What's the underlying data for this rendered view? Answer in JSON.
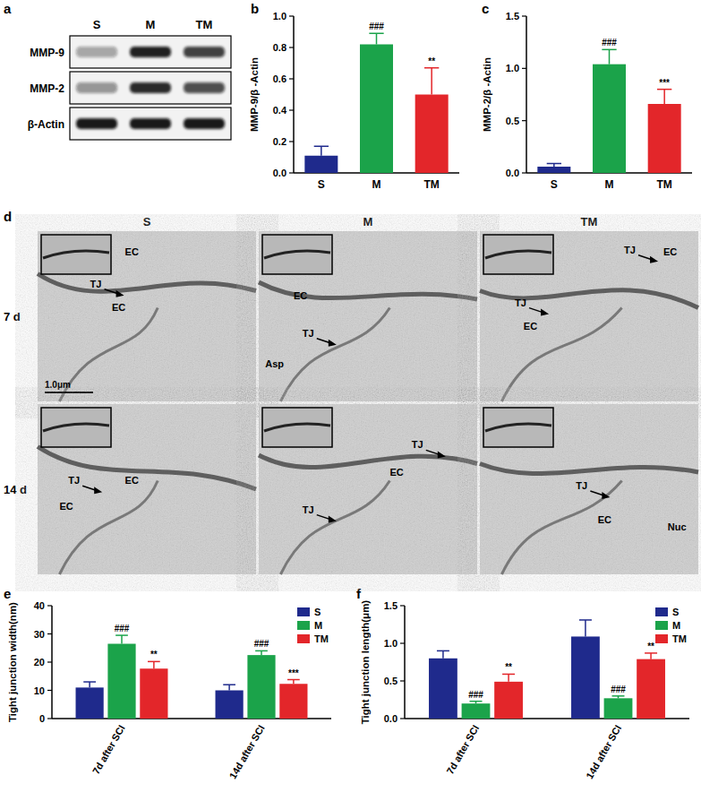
{
  "panel_labels": [
    "a",
    "b",
    "c",
    "d",
    "e",
    "f"
  ],
  "blot": {
    "lanes": [
      "S",
      "M",
      "TM"
    ],
    "rows": [
      "MMP-9",
      "MMP-2",
      "β-Actin"
    ]
  },
  "micrographs": {
    "columns": [
      "S",
      "M",
      "TM"
    ],
    "rows": [
      "7 d",
      "14 d"
    ],
    "scale_bar": "1.0μm",
    "labels": [
      [
        [
          "EC",
          "TJ",
          "EC"
        ],
        [
          "EC",
          "TJ",
          "Asp"
        ],
        [
          "TJ",
          "TJ",
          "EC",
          "EC"
        ]
      ],
      [
        [
          "TJ",
          "EC",
          "EC"
        ],
        [
          "TJ",
          "EC",
          "TJ"
        ],
        [
          "TJ",
          "EC",
          "Nuc"
        ]
      ]
    ]
  },
  "chart_data": [
    {
      "type": "bar",
      "y_label": "MMP-9/β -Actin",
      "categories": [
        "S",
        "M",
        "TM"
      ],
      "values": [
        0.11,
        0.82,
        0.5
      ],
      "errors": [
        0.06,
        0.07,
        0.17
      ],
      "colors": [
        "#1f2a8c",
        "#1ba34a",
        "#e3262a"
      ],
      "sig_labels": [
        null,
        "###",
        "**"
      ],
      "ylim": [
        0,
        1.0
      ],
      "yticks": [
        {
          "value": 0,
          "label": "0.0"
        },
        0.2,
        0.4,
        0.6,
        0.8,
        {
          "value": 1.0,
          "label": "1.0"
        }
      ]
    },
    {
      "type": "bar",
      "y_label": "MMP-2/β -Actin",
      "categories": [
        "S",
        "M",
        "TM"
      ],
      "values": [
        0.06,
        1.04,
        0.66
      ],
      "errors": [
        0.03,
        0.14,
        0.14
      ],
      "colors": [
        "#1f2a8c",
        "#1ba34a",
        "#e3262a"
      ],
      "sig_labels": [
        null,
        "###",
        "***"
      ],
      "ylim": [
        0,
        1.5
      ],
      "yticks": [
        {
          "value": 0,
          "label": "0.0"
        },
        0.5,
        {
          "value": 1.0,
          "label": "1.0"
        },
        1.5
      ]
    },
    {
      "type": "bar",
      "y_label": "Tight junction width(nm)",
      "categories": [
        "7d after SCI",
        "14d after SCI"
      ],
      "series": [
        {
          "name": "S",
          "color": "#1f2a8c",
          "values": [
            11,
            10
          ],
          "errors": [
            2,
            2
          ]
        },
        {
          "name": "M",
          "color": "#1ba34a",
          "values": [
            26.5,
            22.5
          ],
          "errors": [
            3,
            1.5
          ],
          "sig_labels": [
            "###",
            "###"
          ]
        },
        {
          "name": "TM",
          "color": "#e3262a",
          "values": [
            17.7,
            12.3
          ],
          "errors": [
            2.5,
            1.5
          ],
          "sig_labels": [
            "**",
            "***"
          ]
        }
      ],
      "legend": "upper right",
      "ylim": [
        0,
        40
      ],
      "yticks": [
        0,
        10,
        20,
        30,
        40
      ]
    },
    {
      "type": "bar",
      "y_label": "Tight junction length(μm)",
      "categories": [
        "7d after SCI",
        "14d after SCI"
      ],
      "series": [
        {
          "name": "S",
          "color": "#1f2a8c",
          "values": [
            0.8,
            1.09
          ],
          "errors": [
            0.1,
            0.22
          ]
        },
        {
          "name": "M",
          "color": "#1ba34a",
          "values": [
            0.2,
            0.27
          ],
          "errors": [
            0.03,
            0.03
          ],
          "sig_labels": [
            "###",
            "###"
          ]
        },
        {
          "name": "TM",
          "color": "#e3262a",
          "values": [
            0.49,
            0.79
          ],
          "errors": [
            0.1,
            0.08
          ],
          "sig_labels": [
            "**",
            "**"
          ]
        }
      ],
      "legend": "upper right",
      "ylim": [
        0,
        1.5
      ],
      "yticks": [
        {
          "value": 0,
          "label": "0.0"
        },
        0.5,
        {
          "value": 1.0,
          "label": "1.0"
        },
        1.5
      ]
    }
  ]
}
